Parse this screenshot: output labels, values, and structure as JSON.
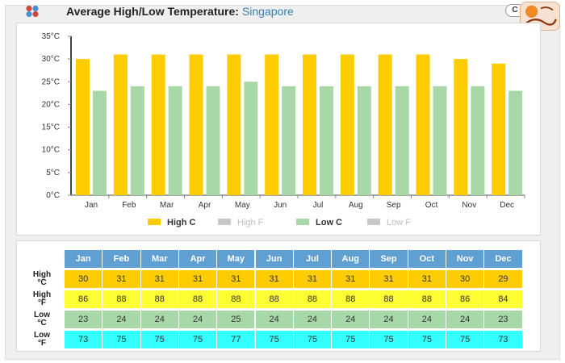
{
  "header": {
    "title": "Average High/Low Temperature:",
    "location": "Singapore",
    "unit_toggle": "C"
  },
  "colors": {
    "high_c": "#ffcc00",
    "high_f": "#ffff33",
    "low_c": "#a8d8a8",
    "low_f": "#33ffff",
    "legend_off": "#c8c8c8",
    "table_header": "#5f9fd2"
  },
  "chart_data": {
    "type": "bar",
    "categories": [
      "Jan",
      "Feb",
      "Mar",
      "Apr",
      "May",
      "Jun",
      "Jul",
      "Aug",
      "Sep",
      "Oct",
      "Nov",
      "Dec"
    ],
    "series": [
      {
        "name": "High C",
        "values": [
          30,
          31,
          31,
          31,
          31,
          31,
          31,
          31,
          31,
          31,
          30,
          29
        ]
      },
      {
        "name": "Low C",
        "values": [
          23,
          24,
          24,
          24,
          25,
          24,
          24,
          24,
          24,
          24,
          24,
          23
        ]
      }
    ],
    "ylim": [
      0,
      35
    ],
    "yticks": [
      0,
      5,
      10,
      15,
      20,
      25,
      30,
      35
    ],
    "ytick_suffix": "°C",
    "legend": [
      {
        "label": "High C",
        "active": true
      },
      {
        "label": "High F",
        "active": false
      },
      {
        "label": "Low C",
        "active": true
      },
      {
        "label": "Low F",
        "active": false
      }
    ],
    "legend_position": "bottom",
    "grid": false
  },
  "table": {
    "months": [
      "Jan",
      "Feb",
      "Mar",
      "Apr",
      "May",
      "Jun",
      "Jul",
      "Aug",
      "Sep",
      "Oct",
      "Nov",
      "Dec"
    ],
    "rows": [
      {
        "label_top": "High",
        "label_bottom": "°C",
        "values": [
          "30",
          "31",
          "31",
          "31",
          "31",
          "31",
          "31",
          "31",
          "31",
          "31",
          "30",
          "29"
        ]
      },
      {
        "label_top": "High",
        "label_bottom": "°F",
        "values": [
          "86",
          "88",
          "88",
          "88",
          "88",
          "88",
          "88",
          "88",
          "88",
          "88",
          "86",
          "84"
        ]
      },
      {
        "label_top": "Low",
        "label_bottom": "°C",
        "values": [
          "23",
          "24",
          "24",
          "24",
          "25",
          "24",
          "24",
          "24",
          "24",
          "24",
          "24",
          "23"
        ]
      },
      {
        "label_top": "Low",
        "label_bottom": "°F",
        "values": [
          "73",
          "75",
          "75",
          "75",
          "77",
          "75",
          "75",
          "75",
          "75",
          "75",
          "75",
          "73"
        ]
      }
    ]
  }
}
